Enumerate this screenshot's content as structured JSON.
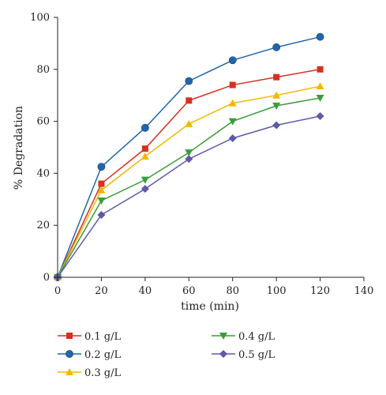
{
  "chart_data": {
    "type": "line",
    "title": "",
    "xlabel": "time (min)",
    "ylabel": "% Degradation",
    "xlim": [
      0,
      140
    ],
    "ylim": [
      0,
      100
    ],
    "xticks": [
      0,
      20,
      40,
      60,
      80,
      100,
      120,
      140
    ],
    "yticks": [
      0,
      20,
      40,
      60,
      80,
      100
    ],
    "grid": false,
    "legend_position": "bottom",
    "x": [
      0,
      20,
      40,
      60,
      80,
      100,
      120
    ],
    "series": [
      {
        "name": "0.1 g/L",
        "color": "#d7301f",
        "marker": "square",
        "values": [
          0,
          36,
          49.5,
          68,
          74,
          77,
          80
        ]
      },
      {
        "name": "0.2 g/L",
        "color": "#2166ac",
        "marker": "circle",
        "values": [
          0,
          42.5,
          57.5,
          75.5,
          83.5,
          88.5,
          92.5
        ]
      },
      {
        "name": "0.3 g/L",
        "color": "#f2b701",
        "marker": "triangle-up",
        "values": [
          0,
          33.5,
          46.5,
          59,
          67,
          70,
          73.5
        ]
      },
      {
        "name": "0.4 g/L",
        "color": "#3a9d3a",
        "marker": "triangle-down",
        "values": [
          0,
          29.5,
          37.5,
          48,
          60,
          66,
          69
        ]
      },
      {
        "name": "0.5 g/L",
        "color": "#5e5aa8",
        "marker": "diamond",
        "values": [
          0,
          24,
          34,
          45.5,
          53.5,
          58.5,
          62
        ]
      }
    ]
  }
}
